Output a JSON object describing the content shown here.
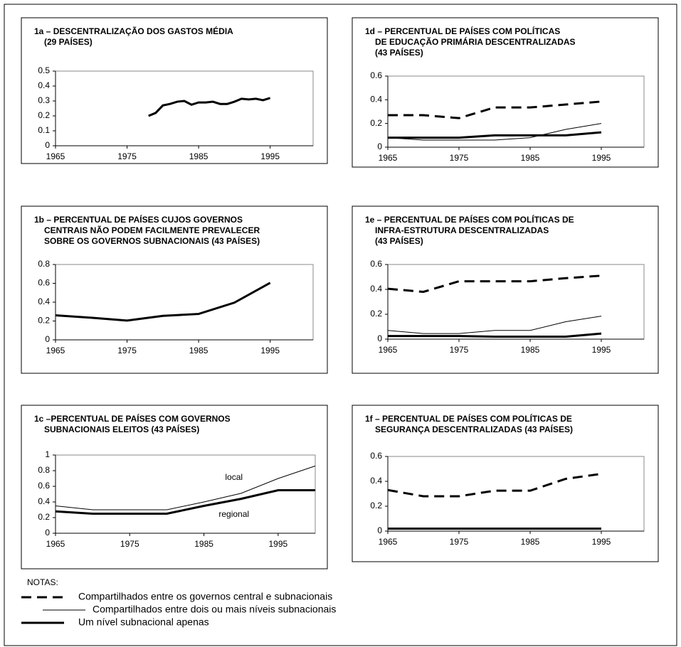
{
  "chart_data": [
    {
      "type": "line",
      "title": [
        "1a – DESCENTRALIZAÇÃO DOS GASTOS MÉDIA",
        "(29 PAÍSES)"
      ],
      "x": [
        1978,
        1979,
        1980,
        1981,
        1982,
        1983,
        1984,
        1985,
        1986,
        1987,
        1988,
        1989,
        1990,
        1991,
        1992,
        1993,
        1994,
        1995
      ],
      "series": [
        {
          "style": "thick",
          "color": "#000000",
          "values": [
            0.2,
            0.22,
            0.27,
            0.28,
            0.295,
            0.3,
            0.275,
            0.29,
            0.29,
            0.295,
            0.28,
            0.28,
            0.295,
            0.315,
            0.31,
            0.315,
            0.305,
            0.32
          ]
        }
      ],
      "xlim": [
        1965,
        2001
      ],
      "xticks": [
        1965,
        1975,
        1985,
        1995
      ],
      "ylim": [
        0,
        0.5
      ],
      "yticks": [
        0,
        0.1,
        0.2,
        0.3,
        0.4,
        0.5
      ]
    },
    {
      "type": "line",
      "title": [
        "1d – PERCENTUAL DE PAÍSES COM POLÍTICAS",
        "DE EDUCAÇÃO PRIMÁRIA DESCENTRALIZADAS",
        "(43 PAÍSES)"
      ],
      "x": [
        1965,
        1970,
        1975,
        1980,
        1985,
        1990,
        1995
      ],
      "series": [
        {
          "style": "dashed",
          "color": "#000000",
          "values": [
            0.27,
            0.27,
            0.245,
            0.335,
            0.335,
            0.36,
            0.385
          ]
        },
        {
          "style": "thin",
          "color": "#000000",
          "values": [
            0.08,
            0.06,
            0.06,
            0.06,
            0.08,
            0.15,
            0.2
          ]
        },
        {
          "style": "thick",
          "color": "#000000",
          "values": [
            0.08,
            0.08,
            0.08,
            0.1,
            0.1,
            0.1,
            0.125
          ]
        }
      ],
      "xlim": [
        1965,
        2001
      ],
      "xticks": [
        1965,
        1975,
        1985,
        1995
      ],
      "ylim": [
        0,
        0.6
      ],
      "yticks": [
        0,
        0.2,
        0.4,
        0.6
      ]
    },
    {
      "type": "line",
      "title": [
        "1b – PERCENTUAL DE PAÍSES CUJOS GOVERNOS",
        "CENTRAIS NÃO PODEM FACILMENTE PREVALECER",
        "SOBRE OS GOVERNOS SUBNACIONAIS (43 PAÍSES)"
      ],
      "x": [
        1965,
        1970,
        1975,
        1980,
        1985,
        1990,
        1995
      ],
      "series": [
        {
          "style": "thick",
          "color": "#000000",
          "values": [
            0.26,
            0.235,
            0.205,
            0.255,
            0.275,
            0.395,
            0.605
          ]
        }
      ],
      "xlim": [
        1965,
        2001
      ],
      "xticks": [
        1965,
        1975,
        1985,
        1995
      ],
      "ylim": [
        0,
        0.8
      ],
      "yticks": [
        0,
        0.2,
        0.4,
        0.6,
        0.8
      ]
    },
    {
      "type": "line",
      "title": [
        "1e – PERCENTUAL DE PAÍSES COM POLÍTICAS DE",
        "INFRA-ESTRUTURA DESCENTRALIZADAS",
        "(43 PAÍSES)"
      ],
      "x": [
        1965,
        1970,
        1975,
        1980,
        1985,
        1990,
        1995
      ],
      "series": [
        {
          "style": "dashed",
          "color": "#000000",
          "values": [
            0.405,
            0.38,
            0.465,
            0.465,
            0.465,
            0.49,
            0.51
          ]
        },
        {
          "style": "thin",
          "color": "#000000",
          "values": [
            0.07,
            0.045,
            0.045,
            0.07,
            0.07,
            0.14,
            0.185
          ]
        },
        {
          "style": "thick",
          "color": "#000000",
          "values": [
            0.025,
            0.025,
            0.025,
            0.02,
            0.02,
            0.02,
            0.045
          ]
        }
      ],
      "xlim": [
        1965,
        2001
      ],
      "xticks": [
        1965,
        1975,
        1985,
        1995
      ],
      "ylim": [
        0,
        0.6
      ],
      "yticks": [
        0,
        0.2,
        0.4,
        0.6
      ]
    },
    {
      "type": "line",
      "title": [
        "1c –PERCENTUAL DE PAÍSES COM GOVERNOS",
        "SUBNACIONAIS ELEITOS (43 PAÍSES)"
      ],
      "x": [
        1965,
        1970,
        1975,
        1980,
        1985,
        1990,
        1995,
        2000
      ],
      "series": [
        {
          "name": "local",
          "style": "thin",
          "color": "#000000",
          "values": [
            0.35,
            0.3,
            0.3,
            0.3,
            0.4,
            0.51,
            0.7,
            0.86
          ]
        },
        {
          "name": "regional",
          "style": "thick",
          "color": "#000000",
          "values": [
            0.28,
            0.25,
            0.25,
            0.25,
            0.35,
            0.44,
            0.55,
            0.55
          ]
        }
      ],
      "xlim": [
        1965,
        2000
      ],
      "xticks": [
        1965,
        1975,
        1985,
        1995
      ],
      "ylim": [
        0,
        1
      ],
      "yticks": [
        0,
        0.2,
        0.4,
        0.6,
        0.8,
        1
      ]
    },
    {
      "type": "line",
      "title": [
        "1f – PERCENTUAL DE PAÍSES COM POLÍTICAS DE",
        "SEGURANÇA DESCENTRALIZADAS (43 PAÍSES)"
      ],
      "x": [
        1965,
        1970,
        1975,
        1980,
        1985,
        1990,
        1995
      ],
      "series": [
        {
          "style": "dashed",
          "color": "#000000",
          "values": [
            0.33,
            0.28,
            0.28,
            0.325,
            0.325,
            0.42,
            0.46
          ]
        },
        {
          "style": "thick",
          "color": "#000000",
          "values": [
            0.02,
            0.02,
            0.02,
            0.02,
            0.02,
            0.02,
            0.02
          ]
        }
      ],
      "xlim": [
        1965,
        2001
      ],
      "xticks": [
        1965,
        1975,
        1985,
        1995
      ],
      "ylim": [
        0,
        0.6
      ],
      "yticks": [
        0,
        0.2,
        0.4,
        0.6
      ]
    }
  ],
  "notes": {
    "title": "NOTAS:",
    "items": [
      {
        "label": "Compartilhados entre os governos central e subnacionais",
        "style": "dashed"
      },
      {
        "label": "Compartilhados entre dois ou mais níveis subnacionais",
        "style": "thin"
      },
      {
        "label": "Um nível subnacional apenas",
        "style": "thick"
      }
    ]
  }
}
